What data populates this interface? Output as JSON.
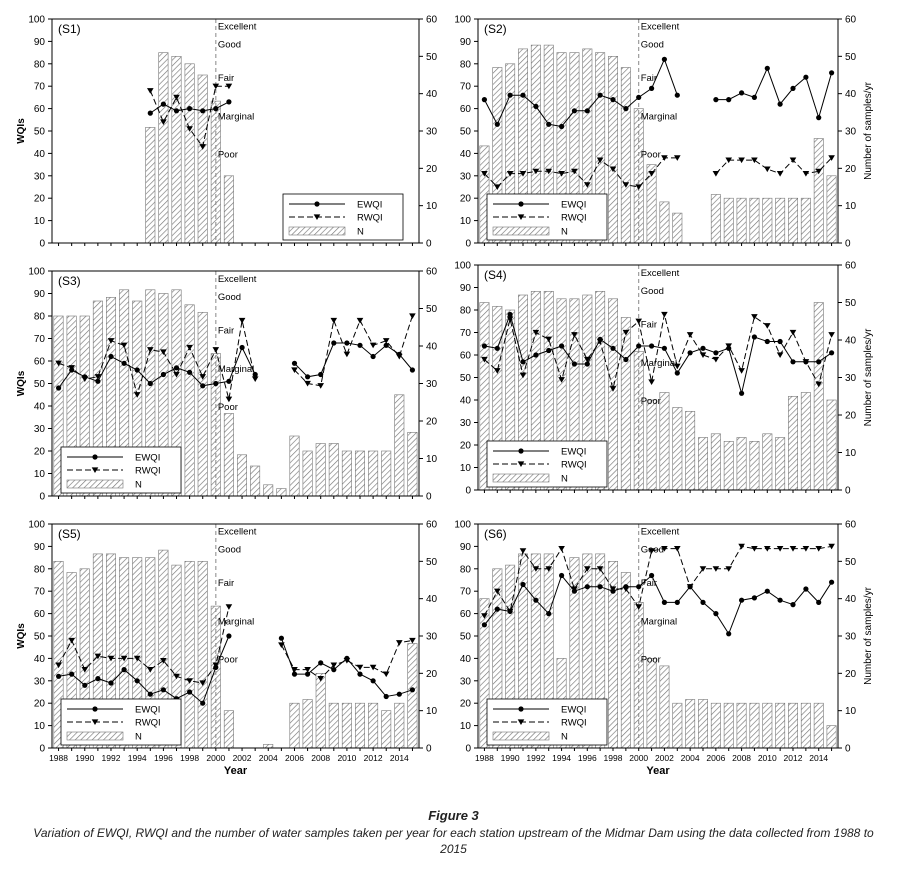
{
  "figure": {
    "title": "Figure 3",
    "caption": "Variation of EWQI, RWQI and the number of water samples taken per year for each station upstream of the Midmar Dam using the data collected from 1988 to 2015"
  },
  "colors": {
    "ink": "#000000",
    "dash": "#888888",
    "hatch": "#555555",
    "bg": "#ffffff"
  },
  "chart_data": [
    {
      "id": "S1",
      "type": "bar+line",
      "label": "(S1)",
      "ylabel_left": "WQIs",
      "ylabel_right": "",
      "xlabel": "",
      "ylim_left": [
        0,
        100
      ],
      "ylim_right": [
        0,
        60
      ],
      "yticks_left": [
        "0",
        "10",
        "20",
        "30",
        "40",
        "50",
        "60",
        "70",
        "80",
        "90",
        "100"
      ],
      "yticks_right": [
        "0",
        "10",
        "20",
        "30",
        "40",
        "50",
        "60"
      ],
      "xticks": [],
      "xlim": [
        1988,
        2015
      ],
      "grid": false,
      "categories_legend": [
        "Excellent",
        "Good",
        "Fair",
        "Marginal",
        "Poor"
      ],
      "legend": [
        "EWQI",
        "RWQI",
        "N"
      ],
      "legend_position": "bottom-right",
      "x": [
        1995,
        1996,
        1997,
        1998,
        1999,
        2000,
        2001
      ],
      "series": [
        {
          "name": "EWQI",
          "values": [
            58,
            62,
            59,
            60,
            59,
            60,
            63
          ]
        },
        {
          "name": "RWQI",
          "values": [
            68,
            54,
            65,
            51,
            43,
            70,
            70
          ]
        },
        {
          "name": "N",
          "values": [
            31,
            51,
            50,
            48,
            45,
            38,
            18
          ]
        }
      ]
    },
    {
      "id": "S2",
      "type": "bar+line",
      "label": "(S2)",
      "ylabel_left": "",
      "ylabel_right": "Number of samples/yr",
      "xlabel": "",
      "ylim_left": [
        0,
        100
      ],
      "ylim_right": [
        0,
        60
      ],
      "yticks_left": [
        "0",
        "10",
        "20",
        "30",
        "40",
        "50",
        "60",
        "70",
        "80",
        "90",
        "100"
      ],
      "yticks_right": [
        "0",
        "10",
        "20",
        "30",
        "40",
        "50",
        "60"
      ],
      "xticks": [],
      "xlim": [
        1988,
        2015
      ],
      "grid": false,
      "categories_legend": [
        "Excellent",
        "Good",
        "Fair",
        "Marginal",
        "Poor"
      ],
      "legend": [
        "EWQI",
        "RWQI",
        "N"
      ],
      "legend_position": "bottom-left",
      "x": [
        1988,
        1989,
        1990,
        1991,
        1992,
        1993,
        1994,
        1995,
        1996,
        1997,
        1998,
        1999,
        2000,
        2001,
        2002,
        2003,
        2004,
        2005,
        2006,
        2007,
        2008,
        2009,
        2010,
        2011,
        2012,
        2013,
        2014,
        2015
      ],
      "series": [
        {
          "name": "EWQI",
          "values": [
            64,
            53,
            66,
            66,
            61,
            53,
            52,
            59,
            59,
            66,
            64,
            60,
            65,
            69,
            82,
            66,
            null,
            null,
            64,
            64,
            67,
            65,
            78,
            62,
            69,
            74,
            56,
            76
          ]
        },
        {
          "name": "RWQI",
          "values": [
            31,
            25,
            31,
            31,
            32,
            32,
            31,
            32,
            26,
            37,
            33,
            26,
            25,
            31,
            38,
            38,
            null,
            null,
            31,
            37,
            37,
            37,
            33,
            31,
            37,
            31,
            32,
            38
          ]
        },
        {
          "name": "N",
          "values": [
            26,
            47,
            48,
            52,
            53,
            53,
            51,
            51,
            52,
            51,
            50,
            47,
            36,
            21,
            11,
            8,
            0,
            0,
            13,
            12,
            12,
            12,
            12,
            12,
            12,
            12,
            28,
            18
          ]
        }
      ]
    },
    {
      "id": "S3",
      "type": "bar+line",
      "label": "(S3)",
      "ylabel_left": "WQIs",
      "ylabel_right": "",
      "xlabel": "",
      "ylim_left": [
        0,
        100
      ],
      "ylim_right": [
        0,
        60
      ],
      "yticks_left": [
        "0",
        "10",
        "20",
        "30",
        "40",
        "50",
        "60",
        "70",
        "80",
        "90",
        "100"
      ],
      "yticks_right": [
        "0",
        "10",
        "20",
        "30",
        "40",
        "50",
        "60"
      ],
      "xticks": [],
      "xlim": [
        1988,
        2015
      ],
      "grid": false,
      "categories_legend": [
        "Excellent",
        "Good",
        "Fair",
        "Marginal",
        "Poor"
      ],
      "legend": [
        "EWQI",
        "RWQI",
        "N"
      ],
      "legend_position": "bottom-left",
      "x": [
        1988,
        1989,
        1990,
        1991,
        1992,
        1993,
        1994,
        1995,
        1996,
        1997,
        1998,
        1999,
        2000,
        2001,
        2002,
        2003,
        2004,
        2005,
        2006,
        2007,
        2008,
        2009,
        2010,
        2011,
        2012,
        2013,
        2014,
        2015
      ],
      "series": [
        {
          "name": "EWQI",
          "values": [
            48,
            56,
            53,
            51,
            62,
            59,
            56,
            50,
            54,
            57,
            55,
            49,
            50,
            51,
            66,
            54,
            null,
            null,
            59,
            53,
            54,
            68,
            68,
            67,
            62,
            67,
            63,
            56
          ]
        },
        {
          "name": "RWQI",
          "values": [
            59,
            57,
            52,
            53,
            69,
            67,
            45,
            65,
            64,
            54,
            66,
            53,
            65,
            43,
            78,
            52,
            null,
            null,
            56,
            50,
            49,
            78,
            63,
            78,
            67,
            69,
            62,
            80
          ]
        },
        {
          "name": "N",
          "values": [
            48,
            48,
            48,
            52,
            53,
            55,
            52,
            55,
            54,
            55,
            51,
            49,
            38,
            22,
            11,
            8,
            3,
            2,
            16,
            12,
            14,
            14,
            12,
            12,
            12,
            12,
            27,
            17
          ]
        }
      ]
    },
    {
      "id": "S4",
      "type": "bar+line",
      "label": "(S4)",
      "ylabel_left": "",
      "ylabel_right": "Number of samples/yr",
      "xlabel": "",
      "ylim_left": [
        0,
        100
      ],
      "ylim_right": [
        0,
        60
      ],
      "yticks_left": [
        "0",
        "10",
        "20",
        "30",
        "40",
        "50",
        "60",
        "70",
        "80",
        "90",
        "100"
      ],
      "yticks_right": [
        "0",
        "10",
        "20",
        "30",
        "40",
        "50",
        "60"
      ],
      "xticks": [],
      "xlim": [
        1988,
        2015
      ],
      "grid": false,
      "categories_legend": [
        "Excellent",
        "Good",
        "Fair",
        "Marginal",
        "Poor"
      ],
      "legend": [
        "EWQI",
        "RWQI",
        "N"
      ],
      "legend_position": "bottom-left",
      "x": [
        1988,
        1989,
        1990,
        1991,
        1992,
        1993,
        1994,
        1995,
        1996,
        1997,
        1998,
        1999,
        2000,
        2001,
        2002,
        2003,
        2004,
        2005,
        2006,
        2007,
        2008,
        2009,
        2010,
        2011,
        2012,
        2013,
        2014,
        2015
      ],
      "series": [
        {
          "name": "EWQI",
          "values": [
            64,
            63,
            78,
            57,
            60,
            62,
            64,
            56,
            56,
            67,
            63,
            58,
            64,
            64,
            63,
            52,
            61,
            63,
            61,
            63,
            43,
            68,
            66,
            66,
            57,
            57,
            57,
            61
          ]
        },
        {
          "name": "RWQI",
          "values": [
            58,
            53,
            76,
            51,
            70,
            67,
            49,
            69,
            58,
            66,
            45,
            70,
            75,
            48,
            78,
            55,
            69,
            60,
            58,
            64,
            53,
            77,
            73,
            60,
            70,
            57,
            47,
            69
          ]
        },
        {
          "name": "N",
          "values": [
            50,
            49,
            48,
            52,
            53,
            53,
            51,
            51,
            52,
            53,
            51,
            46,
            37,
            24,
            26,
            22,
            21,
            14,
            15,
            13,
            14,
            13,
            15,
            14,
            25,
            26,
            50,
            24
          ]
        }
      ]
    },
    {
      "id": "S5",
      "type": "bar+line",
      "label": "(S5)",
      "ylabel_left": "WQIs",
      "ylabel_right": "",
      "xlabel": "Year",
      "ylim_left": [
        0,
        100
      ],
      "ylim_right": [
        0,
        60
      ],
      "yticks_left": [
        "0",
        "10",
        "20",
        "30",
        "40",
        "50",
        "60",
        "70",
        "80",
        "90",
        "100"
      ],
      "yticks_right": [
        "0",
        "10",
        "20",
        "30",
        "40",
        "50",
        "60"
      ],
      "xticks": [
        "1988",
        "1990",
        "1992",
        "1994",
        "1996",
        "1998",
        "2000",
        "2002",
        "2004",
        "2006",
        "2008",
        "2010",
        "2012",
        "2014"
      ],
      "xlim": [
        1988,
        2015
      ],
      "grid": false,
      "categories_legend": [
        "Excellent",
        "Good",
        "Fair",
        "Marginal",
        "Poor"
      ],
      "legend": [
        "EWQI",
        "RWQI",
        "N"
      ],
      "legend_position": "bottom-left",
      "x": [
        1988,
        1989,
        1990,
        1991,
        1992,
        1993,
        1994,
        1995,
        1996,
        1997,
        1998,
        1999,
        2000,
        2001,
        2002,
        2003,
        2004,
        2005,
        2006,
        2007,
        2008,
        2009,
        2010,
        2011,
        2012,
        2013,
        2014,
        2015
      ],
      "series": [
        {
          "name": "EWQI",
          "values": [
            32,
            33,
            28,
            31,
            29,
            35,
            30,
            24,
            26,
            22,
            25,
            20,
            36,
            50,
            null,
            null,
            null,
            49,
            33,
            33,
            38,
            35,
            40,
            33,
            30,
            23,
            24,
            26
          ]
        },
        {
          "name": "RWQI",
          "values": [
            37,
            48,
            35,
            41,
            40,
            40,
            40,
            35,
            39,
            32,
            30,
            29,
            37,
            63,
            null,
            null,
            null,
            46,
            35,
            35,
            31,
            37,
            39,
            36,
            36,
            33,
            47,
            48
          ]
        },
        {
          "name": "N",
          "values": [
            50,
            47,
            48,
            52,
            52,
            51,
            51,
            51,
            53,
            49,
            50,
            50,
            38,
            10,
            0,
            0,
            1,
            0,
            12,
            13,
            20,
            12,
            12,
            12,
            12,
            10,
            12,
            28
          ]
        }
      ]
    },
    {
      "id": "S6",
      "type": "bar+line",
      "label": "(S6)",
      "ylabel_left": "",
      "ylabel_right": "Number of samples/yr",
      "xlabel": "Year",
      "ylim_left": [
        0,
        100
      ],
      "ylim_right": [
        0,
        60
      ],
      "yticks_left": [
        "0",
        "10",
        "20",
        "30",
        "40",
        "50",
        "60",
        "70",
        "80",
        "90",
        "100"
      ],
      "yticks_right": [
        "0",
        "10",
        "20",
        "30",
        "40",
        "50",
        "60"
      ],
      "xticks": [
        "1988",
        "1990",
        "1992",
        "1994",
        "1996",
        "1998",
        "2000",
        "2002",
        "2004",
        "2006",
        "2008",
        "2010",
        "2012",
        "2014"
      ],
      "xlim": [
        1988,
        2015
      ],
      "grid": false,
      "categories_legend": [
        "Excellent",
        "Good",
        "Fair",
        "Marginal",
        "Poor"
      ],
      "legend": [
        "EWQI",
        "RWQI",
        "N"
      ],
      "legend_position": "bottom-left",
      "x": [
        1988,
        1989,
        1990,
        1991,
        1992,
        1993,
        1994,
        1995,
        1996,
        1997,
        1998,
        1999,
        2000,
        2001,
        2002,
        2003,
        2004,
        2005,
        2006,
        2007,
        2008,
        2009,
        2010,
        2011,
        2012,
        2013,
        2014,
        2015
      ],
      "series": [
        {
          "name": "EWQI",
          "values": [
            55,
            62,
            61,
            73,
            66,
            60,
            77,
            70,
            72,
            72,
            70,
            72,
            72,
            77,
            65,
            65,
            72,
            65,
            60,
            51,
            66,
            67,
            70,
            66,
            64,
            71,
            65,
            74
          ]
        },
        {
          "name": "RWQI",
          "values": [
            59,
            70,
            61,
            88,
            80,
            80,
            89,
            71,
            80,
            80,
            71,
            71,
            63,
            88,
            89,
            89,
            72,
            80,
            80,
            80,
            90,
            89,
            89,
            89,
            89,
            89,
            89,
            90
          ]
        },
        {
          "name": "N",
          "values": [
            40,
            48,
            49,
            52,
            52,
            52,
            24,
            51,
            52,
            52,
            50,
            47,
            39,
            24,
            22,
            12,
            13,
            13,
            12,
            12,
            12,
            12,
            12,
            12,
            12,
            12,
            12,
            6
          ]
        }
      ]
    }
  ]
}
